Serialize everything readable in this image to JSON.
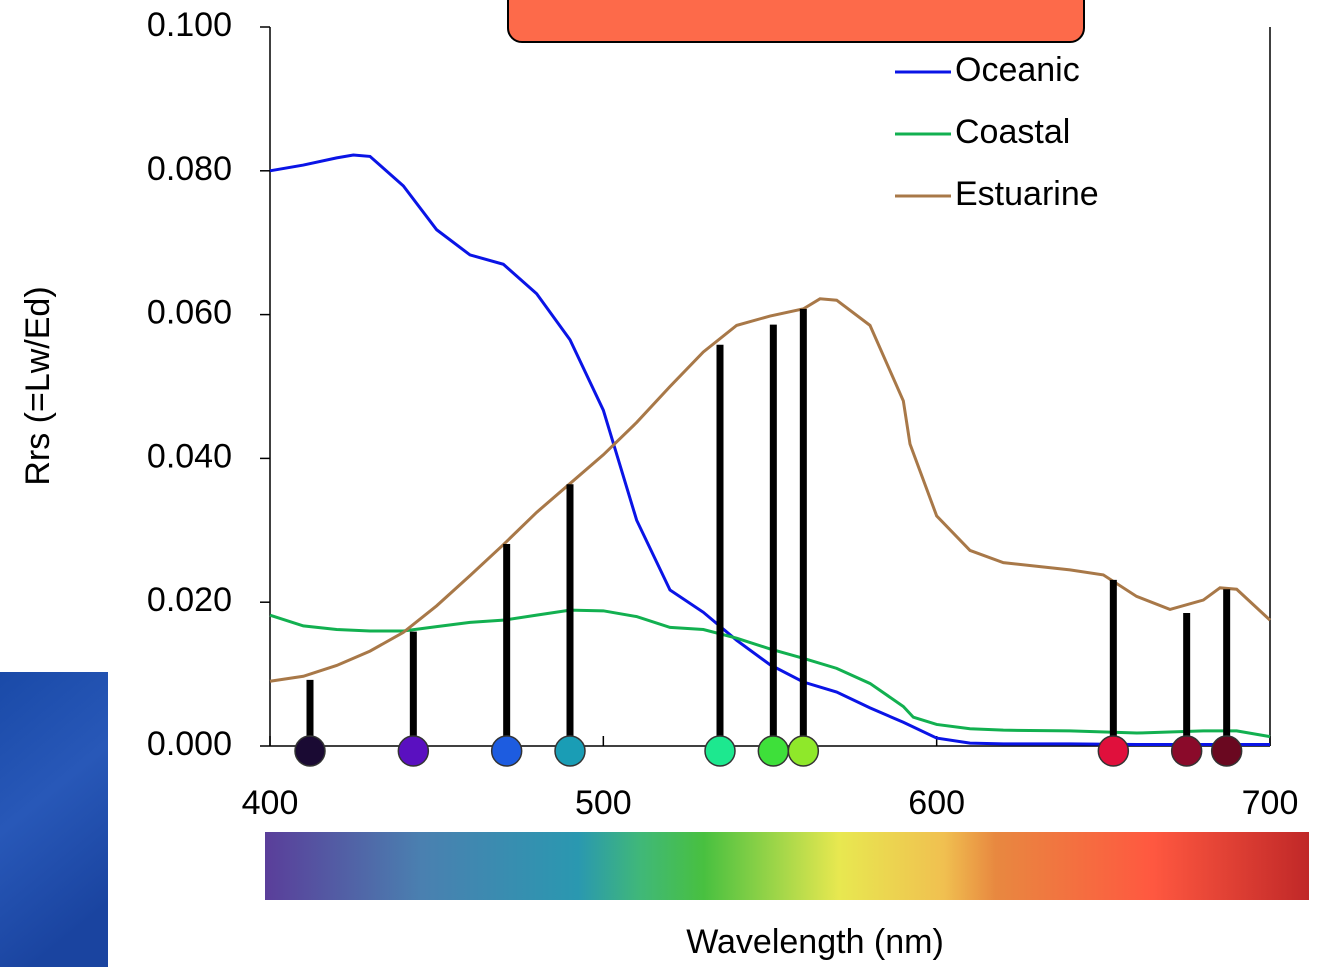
{
  "chart_data": {
    "type": "line",
    "ylabel": "Rrs (=Lw/Ed)",
    "xlabel": "Wavelength (nm)",
    "xlim": [
      400,
      700
    ],
    "ylim": [
      0,
      0.1
    ],
    "xticks": [
      400,
      500,
      600,
      700
    ],
    "yticks": [
      {
        "value": 0,
        "label": "0.000"
      },
      {
        "value": 0.02,
        "label": "0.020"
      },
      {
        "value": 0.04,
        "label": "0.040"
      },
      {
        "value": 0.06,
        "label": "0.060"
      },
      {
        "value": 0.08,
        "label": "0.080"
      },
      {
        "value": 0.1,
        "label": "0.100"
      }
    ],
    "legend": "upper right",
    "series": [
      {
        "name": "Oceanic",
        "color": "#0a14e6",
        "x": [
          400,
          410,
          420,
          425,
          430,
          440,
          450,
          460,
          470,
          480,
          490,
          500,
          510,
          520,
          530,
          540,
          550,
          560,
          570,
          580,
          590,
          600,
          610,
          620,
          640,
          660,
          680,
          700
        ],
        "values": [
          0.08,
          0.0808,
          0.0818,
          0.0822,
          0.082,
          0.0779,
          0.0718,
          0.0683,
          0.067,
          0.0629,
          0.0565,
          0.0467,
          0.0314,
          0.0217,
          0.0186,
          0.0147,
          0.0113,
          0.0089,
          0.0075,
          0.0053,
          0.0033,
          0.0011,
          0.0004,
          0.0003,
          0.0003,
          0.0002,
          0.0002,
          0.0002
        ]
      },
      {
        "name": "Coastal",
        "color": "#12b050",
        "x": [
          400,
          410,
          420,
          430,
          440,
          450,
          460,
          470,
          480,
          490,
          500,
          510,
          520,
          530,
          540,
          550,
          560,
          570,
          580,
          590,
          593,
          600,
          610,
          620,
          640,
          660,
          680,
          690,
          700
        ],
        "values": [
          0.0182,
          0.0167,
          0.0162,
          0.016,
          0.016,
          0.0166,
          0.0172,
          0.0175,
          0.0182,
          0.0189,
          0.0188,
          0.018,
          0.0165,
          0.0162,
          0.015,
          0.0135,
          0.0122,
          0.0108,
          0.0087,
          0.0055,
          0.004,
          0.003,
          0.0024,
          0.0022,
          0.0021,
          0.0018,
          0.0021,
          0.0021,
          0.0013
        ]
      },
      {
        "name": "Estuarine",
        "color": "#a87848",
        "x": [
          400,
          410,
          420,
          430,
          440,
          450,
          460,
          470,
          480,
          490,
          500,
          510,
          520,
          530,
          540,
          550,
          560,
          565,
          570,
          580,
          590,
          592,
          600,
          610,
          620,
          630,
          640,
          650,
          660,
          670,
          680,
          685,
          690,
          700
        ],
        "values": [
          0.009,
          0.0097,
          0.0112,
          0.0132,
          0.0158,
          0.0195,
          0.0237,
          0.028,
          0.0325,
          0.0365,
          0.0405,
          0.045,
          0.05,
          0.0548,
          0.0585,
          0.0598,
          0.0608,
          0.0622,
          0.062,
          0.0585,
          0.048,
          0.042,
          0.032,
          0.0272,
          0.0255,
          0.025,
          0.0245,
          0.0238,
          0.0208,
          0.019,
          0.0203,
          0.022,
          0.0218,
          0.0175
        ]
      }
    ],
    "bands": {
      "x": [
        412,
        443,
        471,
        490,
        535,
        551,
        560,
        653,
        675,
        687
      ],
      "values": [
        0.0092,
        0.0159,
        0.0281,
        0.0364,
        0.0558,
        0.0586,
        0.0608,
        0.0231,
        0.0185,
        0.0218
      ],
      "colors": [
        "#1a0a33",
        "#5a10c0",
        "#1d5ce0",
        "#1a9db5",
        "#1de88f",
        "#3ee03a",
        "#8fe82a",
        "#e0103c",
        "#8a0a2a",
        "#6a0820"
      ]
    }
  }
}
